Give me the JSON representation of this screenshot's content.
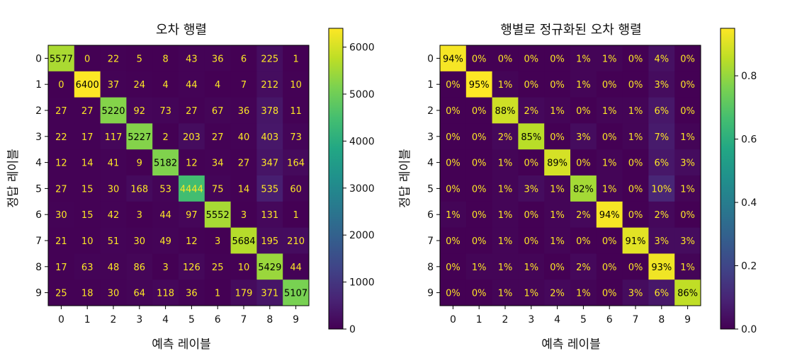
{
  "chart_data": [
    {
      "type": "heatmap",
      "title": "오차 행렬",
      "xlabel": "예측 레이블",
      "ylabel": "정답 레이블",
      "x_ticks": [
        "0",
        "1",
        "2",
        "3",
        "4",
        "5",
        "6",
        "7",
        "8",
        "9"
      ],
      "y_ticks": [
        "0",
        "1",
        "2",
        "3",
        "4",
        "5",
        "6",
        "7",
        "8",
        "9"
      ],
      "matrix": [
        [
          5577,
          0,
          22,
          5,
          8,
          43,
          36,
          6,
          225,
          1
        ],
        [
          0,
          6400,
          37,
          24,
          4,
          44,
          4,
          7,
          212,
          10
        ],
        [
          27,
          27,
          5220,
          92,
          73,
          27,
          67,
          36,
          378,
          11
        ],
        [
          22,
          17,
          117,
          5227,
          2,
          203,
          27,
          40,
          403,
          73
        ],
        [
          12,
          14,
          41,
          9,
          5182,
          12,
          34,
          27,
          347,
          164
        ],
        [
          27,
          15,
          30,
          168,
          53,
          4444,
          75,
          14,
          535,
          60
        ],
        [
          30,
          15,
          42,
          3,
          44,
          97,
          5552,
          3,
          131,
          1
        ],
        [
          21,
          10,
          51,
          30,
          49,
          12,
          3,
          5684,
          195,
          210
        ],
        [
          17,
          63,
          48,
          86,
          3,
          126,
          25,
          10,
          5429,
          44
        ],
        [
          25,
          18,
          30,
          64,
          118,
          36,
          1,
          179,
          371,
          5107
        ]
      ],
      "cell_labels": [
        [
          "5577",
          "0",
          "22",
          "5",
          "8",
          "43",
          "36",
          "6",
          "225",
          "1"
        ],
        [
          "0",
          "6400",
          "37",
          "24",
          "4",
          "44",
          "4",
          "7",
          "212",
          "10"
        ],
        [
          "27",
          "27",
          "5220",
          "92",
          "73",
          "27",
          "67",
          "36",
          "378",
          "11"
        ],
        [
          "22",
          "17",
          "117",
          "5227",
          "2",
          "203",
          "27",
          "40",
          "403",
          "73"
        ],
        [
          "12",
          "14",
          "41",
          "9",
          "5182",
          "12",
          "34",
          "27",
          "347",
          "164"
        ],
        [
          "27",
          "15",
          "30",
          "168",
          "53",
          "4444",
          "75",
          "14",
          "535",
          "60"
        ],
        [
          "30",
          "15",
          "42",
          "3",
          "44",
          "97",
          "5552",
          "3",
          "131",
          "1"
        ],
        [
          "21",
          "10",
          "51",
          "30",
          "49",
          "12",
          "3",
          "5684",
          "195",
          "210"
        ],
        [
          "17",
          "63",
          "48",
          "86",
          "3",
          "126",
          "25",
          "10",
          "5429",
          "44"
        ],
        [
          "25",
          "18",
          "30",
          "64",
          "118",
          "36",
          "1",
          "179",
          "371",
          "5107"
        ]
      ],
      "colorbar_ticks": [
        "0",
        "1000",
        "2000",
        "3000",
        "4000",
        "5000",
        "6000"
      ],
      "colorbar_tick_values": [
        0,
        1000,
        2000,
        3000,
        4000,
        5000,
        6000
      ],
      "vmin": 0,
      "vmax": 6400,
      "colormap": "viridis",
      "text_color": "#fde725"
    },
    {
      "type": "heatmap",
      "title": "행별로 정규화된 오차 행렬",
      "xlabel": "예측 레이블",
      "ylabel": "정답 레이블",
      "x_ticks": [
        "0",
        "1",
        "2",
        "3",
        "4",
        "5",
        "6",
        "7",
        "8",
        "9"
      ],
      "y_ticks": [
        "0",
        "1",
        "2",
        "3",
        "4",
        "5",
        "6",
        "7",
        "8",
        "9"
      ],
      "matrix": [
        [
          0.94,
          0.0,
          0.0,
          0.0,
          0.0,
          0.01,
          0.01,
          0.0,
          0.04,
          0.0
        ],
        [
          0.0,
          0.95,
          0.01,
          0.0,
          0.0,
          0.01,
          0.0,
          0.0,
          0.03,
          0.0
        ],
        [
          0.0,
          0.0,
          0.88,
          0.02,
          0.01,
          0.0,
          0.01,
          0.01,
          0.06,
          0.0
        ],
        [
          0.0,
          0.0,
          0.02,
          0.85,
          0.0,
          0.03,
          0.0,
          0.01,
          0.07,
          0.01
        ],
        [
          0.0,
          0.0,
          0.01,
          0.0,
          0.89,
          0.0,
          0.01,
          0.0,
          0.06,
          0.03
        ],
        [
          0.0,
          0.0,
          0.01,
          0.03,
          0.01,
          0.82,
          0.01,
          0.0,
          0.1,
          0.01
        ],
        [
          0.01,
          0.0,
          0.01,
          0.0,
          0.01,
          0.02,
          0.94,
          0.0,
          0.02,
          0.0
        ],
        [
          0.0,
          0.0,
          0.01,
          0.0,
          0.01,
          0.0,
          0.0,
          0.91,
          0.03,
          0.03
        ],
        [
          0.0,
          0.01,
          0.01,
          0.01,
          0.0,
          0.02,
          0.0,
          0.0,
          0.93,
          0.01
        ],
        [
          0.0,
          0.0,
          0.01,
          0.01,
          0.02,
          0.01,
          0.0,
          0.03,
          0.06,
          0.86
        ]
      ],
      "cell_labels": [
        [
          "94%",
          "0%",
          "0%",
          "0%",
          "0%",
          "1%",
          "1%",
          "0%",
          "4%",
          "0%"
        ],
        [
          "0%",
          "95%",
          "1%",
          "0%",
          "0%",
          "1%",
          "0%",
          "0%",
          "3%",
          "0%"
        ],
        [
          "0%",
          "0%",
          "88%",
          "2%",
          "1%",
          "0%",
          "1%",
          "1%",
          "6%",
          "0%"
        ],
        [
          "0%",
          "0%",
          "2%",
          "85%",
          "0%",
          "3%",
          "0%",
          "1%",
          "7%",
          "1%"
        ],
        [
          "0%",
          "0%",
          "1%",
          "0%",
          "89%",
          "0%",
          "1%",
          "0%",
          "6%",
          "3%"
        ],
        [
          "0%",
          "0%",
          "1%",
          "3%",
          "1%",
          "82%",
          "1%",
          "0%",
          "10%",
          "1%"
        ],
        [
          "1%",
          "0%",
          "1%",
          "0%",
          "1%",
          "2%",
          "94%",
          "0%",
          "2%",
          "0%"
        ],
        [
          "0%",
          "0%",
          "1%",
          "0%",
          "1%",
          "0%",
          "0%",
          "91%",
          "3%",
          "3%"
        ],
        [
          "0%",
          "1%",
          "1%",
          "1%",
          "0%",
          "2%",
          "0%",
          "0%",
          "93%",
          "1%"
        ],
        [
          "0%",
          "0%",
          "1%",
          "1%",
          "2%",
          "1%",
          "0%",
          "3%",
          "6%",
          "86%"
        ]
      ],
      "colorbar_ticks": [
        "0.0",
        "0.2",
        "0.4",
        "0.6",
        "0.8"
      ],
      "colorbar_tick_values": [
        0.0,
        0.2,
        0.4,
        0.6,
        0.8
      ],
      "vmin": 0.0,
      "vmax": 0.95,
      "colormap": "viridis",
      "text_color": "#fde725"
    }
  ]
}
